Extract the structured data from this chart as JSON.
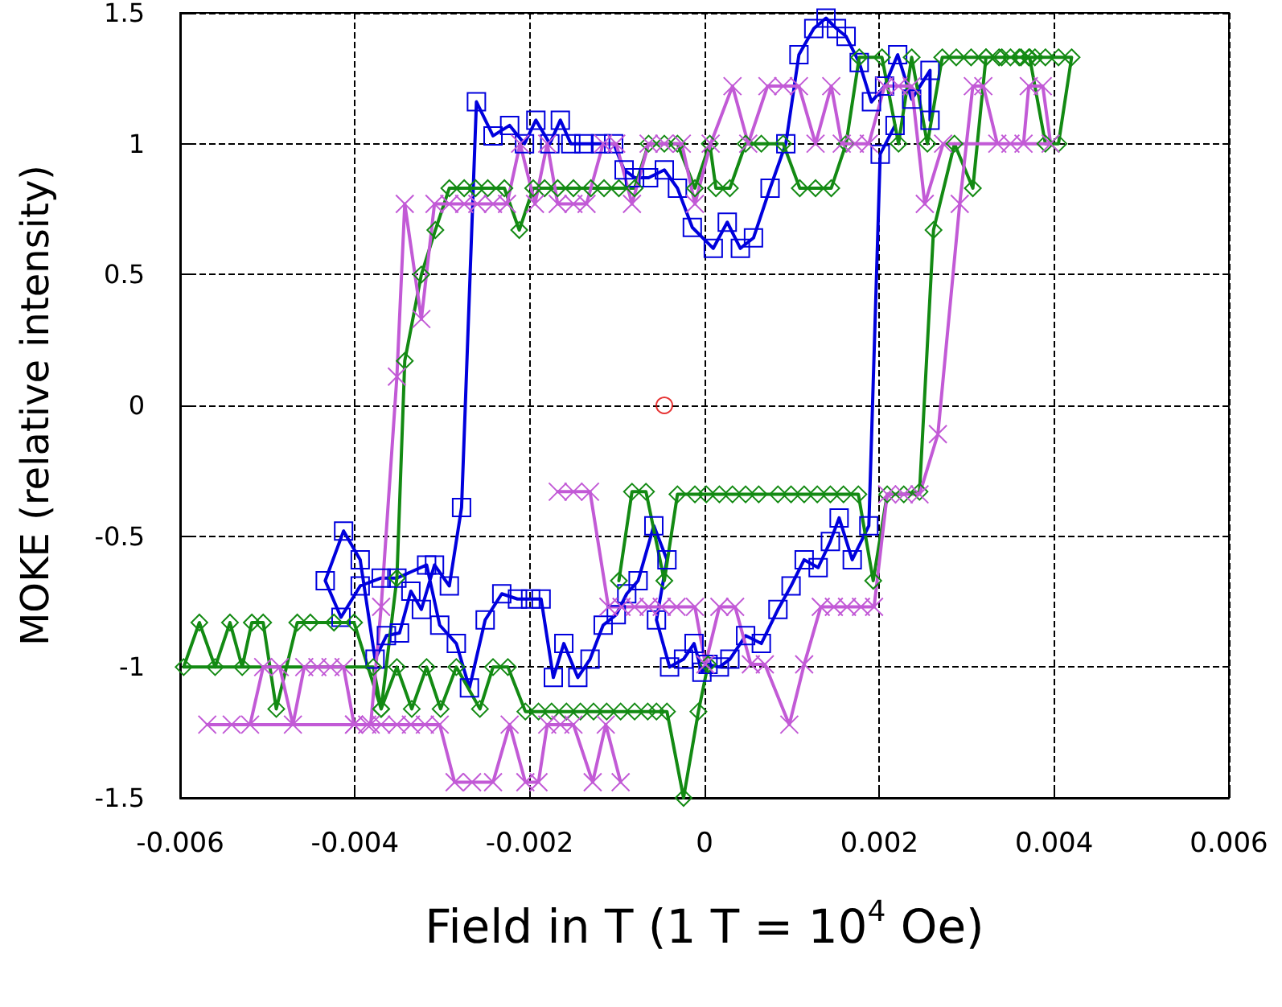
{
  "chart_data": {
    "type": "line",
    "xlabel": "Field in T (1 T = 10$^{4}$ Oe)",
    "ylabel": "MOKE (relative intensity)",
    "xlim": [
      -0.006,
      0.006
    ],
    "xticks": [
      -0.006,
      -0.004,
      -0.002,
      0,
      0.002,
      0.004,
      0.006
    ],
    "ylim": [
      -1.5,
      1.5
    ],
    "yticks": [
      -1.5,
      -1,
      -0.5,
      0,
      0.5,
      1,
      1.5
    ],
    "grid": true,
    "line_style": "solid",
    "series": [
      {
        "color": "#0000dd",
        "marker": "square",
        "x": [
          0.00258,
          0.00258,
          0.00237,
          0.00221,
          0.00206,
          0.00191,
          0.00177,
          0.00162,
          0.00151,
          0.00139,
          0.00125,
          0.00108,
          0.00093,
          0.00075,
          0.00056,
          0.00041,
          0.00026,
          0.0001,
          -0.00014,
          -0.00031,
          -0.00046,
          -0.00064,
          -0.0008,
          -0.00092,
          -0.00104,
          -0.00119,
          -0.00138,
          -0.00153,
          -0.00165,
          -0.00177,
          -0.00193,
          -0.00206,
          -0.00223,
          -0.00242,
          -0.00261,
          -0.00278,
          -0.00292,
          -0.00309,
          -0.00324,
          -0.00336,
          -0.00349,
          -0.00364,
          -0.00377,
          -0.00394,
          -0.00413,
          -0.00434,
          -0.00416,
          -0.00394,
          -0.0037,
          -0.00352,
          -0.00318,
          -0.00303,
          -0.00284,
          -0.00269,
          -0.00251,
          -0.00232,
          -0.00214,
          -0.00199,
          -0.00187,
          -0.00173,
          -0.00161,
          -0.00145,
          -0.00131,
          -0.00116,
          -0.00101,
          -0.00089,
          -0.00076,
          -0.00058,
          -0.00043,
          -0.00055,
          -0.0004,
          -0.00024,
          -0.00012,
          -3e-05,
          4e-05,
          0.00017,
          0.00029,
          0.00047,
          0.00065,
          0.00084,
          0.00099,
          0.00114,
          0.0013,
          0.00144,
          0.00154,
          0.00169,
          0.00188,
          0.00201,
          0.00218
        ],
        "values": [
          1.09,
          1.28,
          1.17,
          1.34,
          1.22,
          1.16,
          1.31,
          1.41,
          1.44,
          1.48,
          1.44,
          1.34,
          1.0,
          0.83,
          0.64,
          0.6,
          0.7,
          0.6,
          0.68,
          0.83,
          0.9,
          0.87,
          0.87,
          0.9,
          1.0,
          1.0,
          1.0,
          1.0,
          1.09,
          1.0,
          1.09,
          1.0,
          1.07,
          1.03,
          1.16,
          -0.39,
          -0.69,
          -0.61,
          -0.78,
          -0.71,
          -0.87,
          -0.88,
          -0.97,
          -0.59,
          -0.48,
          -0.67,
          -0.81,
          -0.69,
          -0.66,
          -0.66,
          -0.61,
          -0.84,
          -0.91,
          -1.08,
          -0.82,
          -0.72,
          -0.74,
          -0.74,
          -0.74,
          -1.04,
          -0.91,
          -1.04,
          -0.97,
          -0.84,
          -0.8,
          -0.72,
          -0.67,
          -0.46,
          -0.59,
          -0.82,
          -1.0,
          -0.97,
          -0.91,
          -1.02,
          -0.99,
          -1.0,
          -0.97,
          -0.88,
          -0.91,
          -0.78,
          -0.69,
          -0.59,
          -0.62,
          -0.52,
          -0.43,
          -0.59,
          -0.46,
          0.96,
          1.07
        ]
      },
      {
        "color": "#138a13",
        "marker": "diamond",
        "x": [
          -0.00098,
          -0.00083,
          -0.00067,
          -0.00046,
          -0.00031,
          -0.00011,
          2e-05,
          0.00017,
          0.00032,
          0.00047,
          0.00062,
          0.00084,
          0.00099,
          0.00114,
          0.00129,
          0.00144,
          0.00159,
          0.00176,
          0.00193,
          0.00209,
          0.00228,
          0.00246,
          0.00262,
          0.00286,
          0.00307,
          0.00322,
          0.00337,
          0.0035,
          0.00362,
          0.00371,
          0.00378,
          0.0039,
          0.00405,
          0.0042,
          0.00405,
          0.0039,
          0.00372,
          0.0036,
          0.0034,
          0.00322,
          0.00305,
          0.00288,
          0.00272,
          0.00255,
          0.00237,
          0.00222,
          0.00203,
          0.00177,
          0.00162,
          0.00145,
          0.00127,
          0.00109,
          0.0009,
          0.00065,
          0.00047,
          0.00029,
          0.00013,
          6e-05,
          -0.00011,
          -0.00031,
          -0.00046,
          -0.00064,
          -0.0008,
          -0.00098,
          -0.00115,
          -0.0013,
          -0.0015,
          -0.00168,
          -0.00183,
          -0.00196,
          -0.00212,
          -0.00229,
          -0.00248,
          -0.00262,
          -0.00275,
          -0.00292,
          -0.00308,
          -0.00324,
          -0.00343,
          -0.00352,
          -0.0037,
          -0.00401,
          -0.00424,
          -0.00451,
          -0.00466,
          -0.0049,
          -0.00505,
          -0.00518,
          -0.00529,
          -0.00543,
          -0.0056,
          -0.00578,
          -0.00596,
          -0.00379,
          -0.0037,
          -0.00352,
          -0.00335,
          -0.00318,
          -0.00302,
          -0.00284,
          -0.00257,
          -0.00242,
          -0.00225,
          -0.00205,
          -0.0019,
          -0.00175,
          -0.00158,
          -0.00142,
          -0.00127,
          -0.00112,
          -0.00096,
          -0.0008,
          -0.00065,
          -0.00055,
          -0.00043,
          -0.00024,
          -7e-05,
          4e-05
        ],
        "values": [
          -0.67,
          -0.33,
          -0.33,
          -0.67,
          -0.34,
          -0.34,
          -0.34,
          -0.34,
          -0.34,
          -0.34,
          -0.34,
          -0.34,
          -0.34,
          -0.34,
          -0.34,
          -0.34,
          -0.34,
          -0.34,
          -0.67,
          -0.34,
          -0.34,
          -0.33,
          0.67,
          1.0,
          0.83,
          1.33,
          1.33,
          1.33,
          1.33,
          1.33,
          1.33,
          1.33,
          1.33,
          1.33,
          1.0,
          1.0,
          1.33,
          1.33,
          1.33,
          1.33,
          1.33,
          1.33,
          1.33,
          1.0,
          1.33,
          1.0,
          1.33,
          1.33,
          1.0,
          0.83,
          0.83,
          0.83,
          1.0,
          1.0,
          1.0,
          0.83,
          0.83,
          1.0,
          0.83,
          1.0,
          1.0,
          1.0,
          0.83,
          0.83,
          0.83,
          0.83,
          0.83,
          0.83,
          0.83,
          0.83,
          0.67,
          0.83,
          0.83,
          0.83,
          0.83,
          0.83,
          0.67,
          0.5,
          0.17,
          -0.66,
          -1.16,
          -0.83,
          -0.83,
          -0.83,
          -0.83,
          -1.16,
          -0.83,
          -0.83,
          -1.0,
          -0.83,
          -1.0,
          -0.83,
          -1.0,
          -1.0,
          -1.16,
          -1.0,
          -1.16,
          -1.0,
          -1.16,
          -1.0,
          -1.16,
          -1.0,
          -1.0,
          -1.17,
          -1.17,
          -1.17,
          -1.17,
          -1.17,
          -1.17,
          -1.17,
          -1.17,
          -1.17,
          -1.17,
          -1.17,
          -1.17,
          -1.5,
          -1.17,
          -0.99
        ]
      },
      {
        "color": "#c25ad6",
        "marker": "cross",
        "x": [
          -0.00168,
          -0.0015,
          -0.00131,
          -0.0011,
          -0.00095,
          -0.0008,
          -0.00064,
          -0.00049,
          -0.00032,
          -0.00011,
          1e-05,
          0.00017,
          0.00035,
          0.00053,
          0.00069,
          0.00097,
          0.00114,
          0.00133,
          0.00148,
          0.00163,
          0.00179,
          0.00194,
          0.00209,
          0.00228,
          0.00246,
          0.00267,
          0.00292,
          0.00307,
          0.00319,
          0.00335,
          0.0035,
          0.00365,
          0.00371,
          0.00387,
          0.00396,
          0.00273,
          0.00252,
          0.00237,
          0.00222,
          0.00206,
          0.00188,
          0.00172,
          0.00157,
          0.00145,
          0.00127,
          0.00108,
          0.0009,
          0.00072,
          0.0005,
          0.00032,
          7e-05,
          -0.00011,
          -0.00026,
          -0.00046,
          -0.00064,
          -0.00083,
          -0.00101,
          -0.00116,
          -0.00135,
          -0.0015,
          -0.00168,
          -0.0018,
          -0.00194,
          -0.00211,
          -0.00226,
          -0.00242,
          -0.0026,
          -0.00275,
          -0.00292,
          -0.00309,
          -0.00324,
          -0.00343,
          -0.00352,
          -0.0037,
          -0.00382,
          -0.00401,
          -0.00413,
          -0.00428,
          -0.00443,
          -0.00458,
          -0.00471,
          -0.00486,
          -0.00505,
          -0.0052,
          -0.00541,
          -0.00569,
          -0.00401,
          -0.00386,
          -0.0037,
          -0.00352,
          -0.00336,
          -0.0032,
          -0.00303,
          -0.00286,
          -0.00266,
          -0.00242,
          -0.00223,
          -0.00205,
          -0.0019,
          -0.0018,
          -0.00165,
          -0.0015,
          -0.00128,
          -0.00113,
          -0.00096
        ],
        "values": [
          -0.33,
          -0.33,
          -0.33,
          -0.77,
          -0.77,
          -0.77,
          -0.77,
          -0.77,
          -0.77,
          -0.77,
          -0.99,
          -0.77,
          -0.77,
          -0.99,
          -0.99,
          -1.22,
          -0.99,
          -0.77,
          -0.77,
          -0.77,
          -0.77,
          -0.77,
          -0.34,
          -0.34,
          -0.34,
          -0.11,
          0.77,
          1.22,
          1.22,
          1.0,
          1.0,
          1.0,
          1.22,
          1.22,
          1.0,
          1.0,
          0.77,
          1.22,
          1.22,
          1.22,
          1.0,
          1.0,
          1.0,
          1.22,
          1.0,
          1.22,
          1.22,
          1.22,
          1.0,
          1.22,
          1.0,
          0.77,
          1.0,
          1.0,
          1.0,
          0.77,
          1.0,
          1.0,
          0.77,
          0.77,
          0.77,
          1.0,
          0.77,
          1.0,
          0.77,
          0.77,
          0.77,
          0.77,
          0.77,
          0.77,
          0.33,
          0.77,
          0.11,
          -0.77,
          -1.22,
          -1.22,
          -1.0,
          -1.0,
          -1.0,
          -1.0,
          -1.22,
          -1.0,
          -1.0,
          -1.22,
          -1.22,
          -1.22,
          -1.22,
          -1.22,
          -1.22,
          -1.22,
          -1.22,
          -1.22,
          -1.22,
          -1.44,
          -1.44,
          -1.44,
          -1.22,
          -1.44,
          -1.44,
          -1.22,
          -1.22,
          -1.22,
          -1.44,
          -1.22,
          -1.44
        ]
      },
      {
        "type": "scatter",
        "color": "#e00000",
        "marker": "circle",
        "x": [
          -0.00046
        ],
        "values": [
          0
        ]
      }
    ]
  }
}
